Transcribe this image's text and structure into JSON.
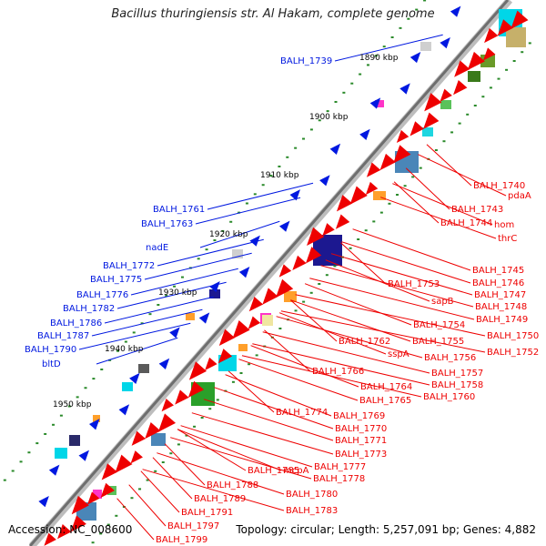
{
  "title": "Bacillus thuringiensis str. Al Hakam, complete genome",
  "accession": "Accession: NC_008600",
  "footer": "Topology: circular; Length: 5,257,091 bp; Genes: 4,882",
  "colors": {
    "forward": "#0018e0",
    "reverse": "#ee0000",
    "backbone": "#7a7a7a"
  },
  "kbp_ticks": [
    "1890 kbp",
    "1900 kbp",
    "1910 kbp",
    "1920 kbp",
    "1930 kbp",
    "1940 kbp",
    "1950 kbp"
  ],
  "forward_labels": [
    "BALH_1739",
    "BALH_1761",
    "BALH_1763",
    "nadE",
    "BALH_1772",
    "BALH_1775",
    "BALH_1776",
    "BALH_1782",
    "BALH_1786",
    "BALH_1787",
    "BALH_1790",
    "bltD"
  ],
  "reverse_labels": [
    "BALH_1740",
    "pdaA",
    "BALH_1743",
    "hom",
    "BALH_1744",
    "thrC",
    "BALH_1745",
    "BALH_1746",
    "BALH_1747",
    "BALH_1748",
    "BALH_1749",
    "BALH_1753",
    "sapB",
    "BALH_1750",
    "BALH_1754",
    "BALH_1752",
    "BALH_1762",
    "BALH_1755",
    "sspA",
    "BALH_1756",
    "BALH_1757",
    "BALH_1766",
    "BALH_1758",
    "BALH_1764",
    "BALH_1760",
    "BALH_1765",
    "BALH_1774",
    "BALH_1769",
    "BALH_1770",
    "BALH_1771",
    "BALH_1773",
    "BALH_1777",
    "BALH_1785",
    "mcpA",
    "BALH_1778",
    "BALH_1788",
    "BALH_1789",
    "BALH_1780",
    "BALH_1791",
    "BALH_1783",
    "BALH_1797",
    "BALH_1799"
  ]
}
